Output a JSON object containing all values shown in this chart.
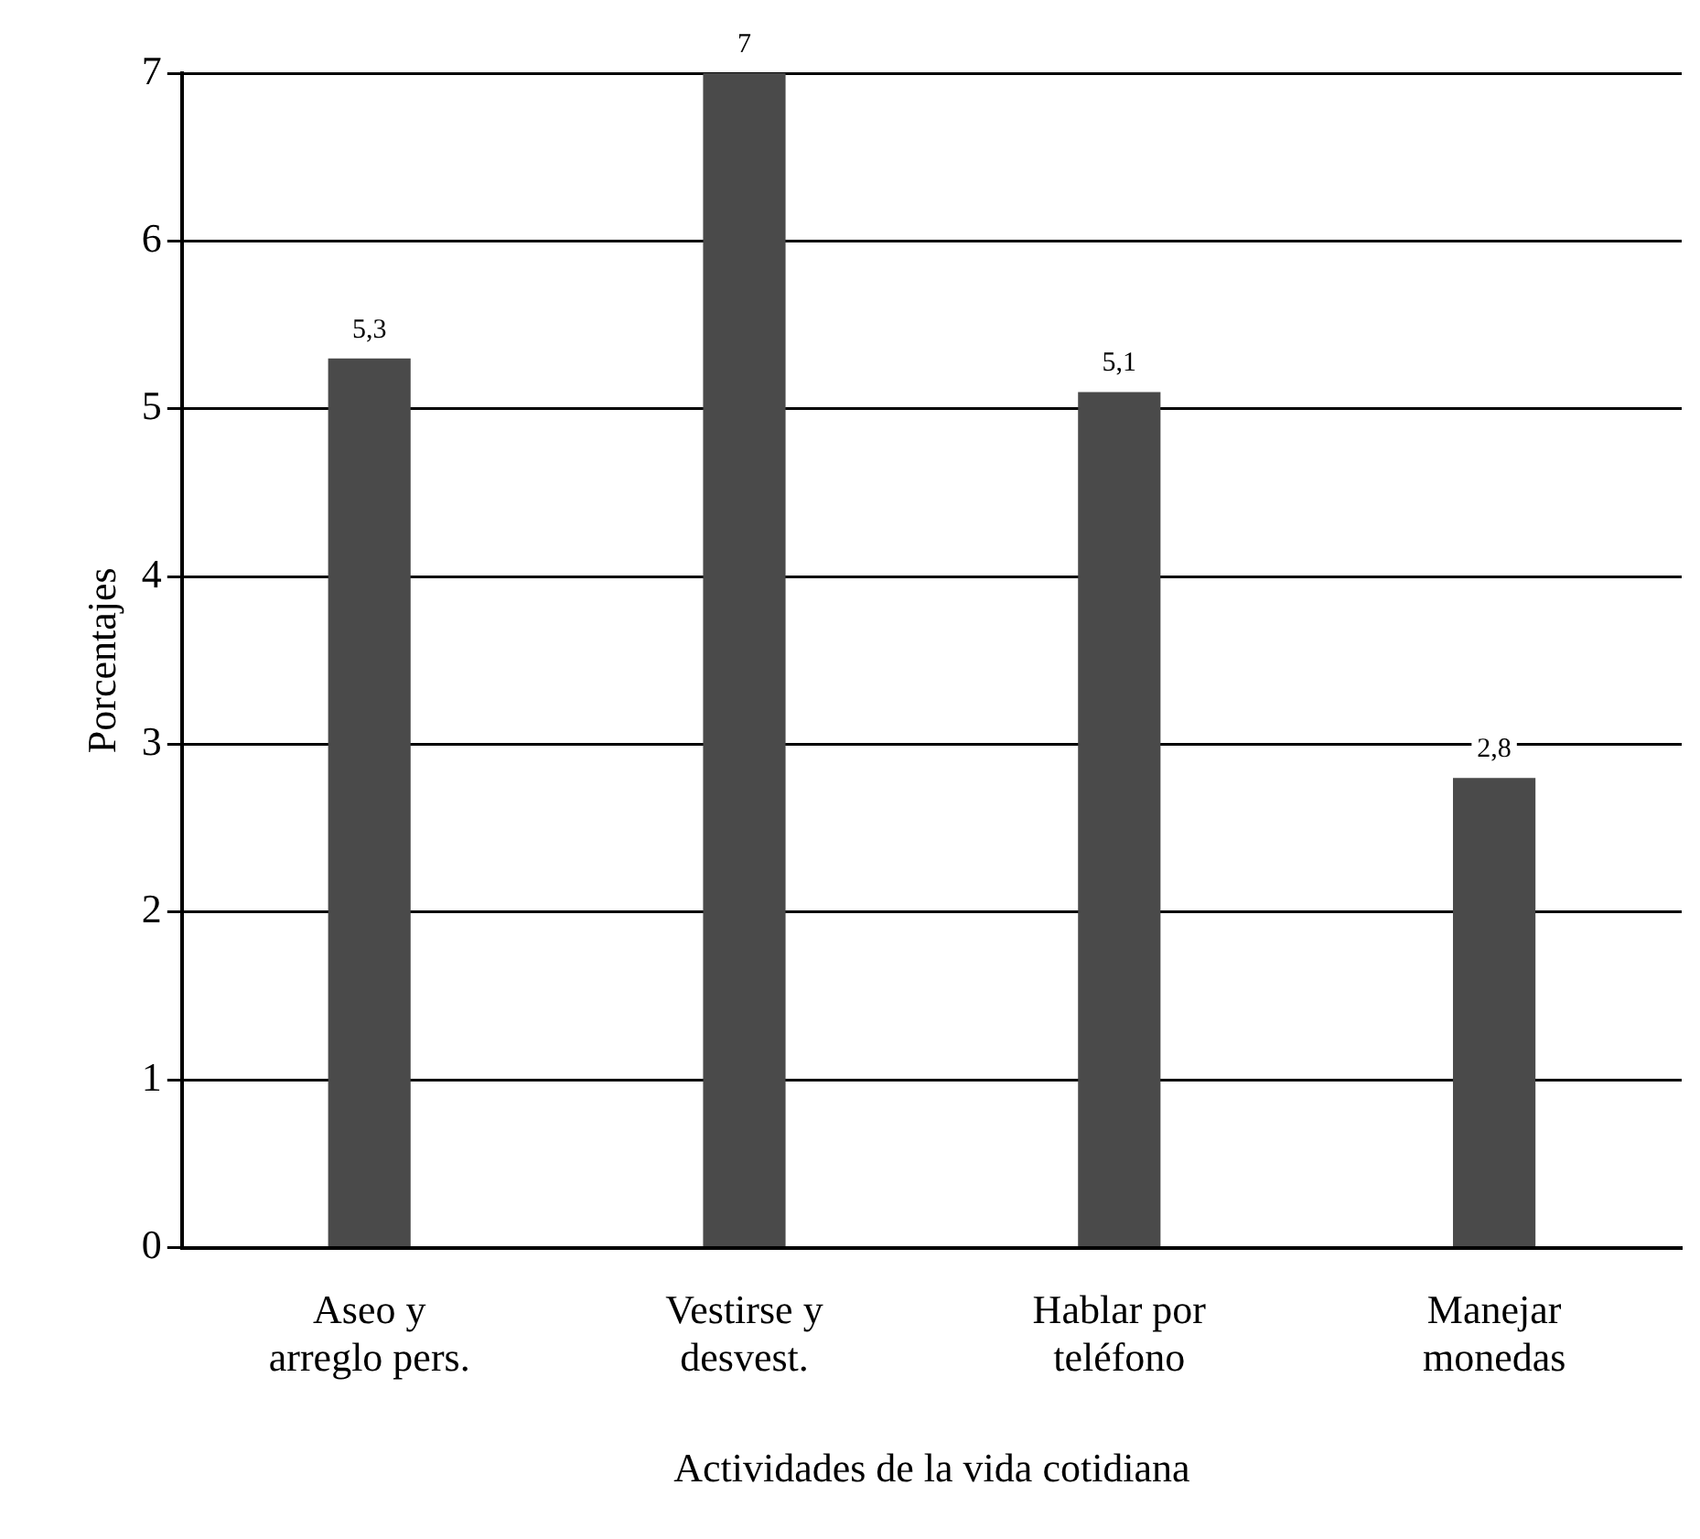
{
  "chart_data": {
    "type": "bar",
    "xlabel": "Actividades de la vida cotidiana",
    "ylabel": "Porcentajes",
    "categories": [
      "Aseo y\narreglo pers.",
      "Vestirse y\ndesvest.",
      "Hablar por\nteléfono",
      "Manejar\nmonedas"
    ],
    "values": [
      5.3,
      7,
      5.1,
      2.8
    ],
    "value_labels": [
      "5,3",
      "7",
      "5,1",
      "2,8"
    ],
    "color": "#4a4a4a",
    "ylim": [
      0,
      7
    ],
    "yticks": [
      0,
      1,
      2,
      3,
      4,
      5,
      6,
      7
    ],
    "grid": "y"
  }
}
